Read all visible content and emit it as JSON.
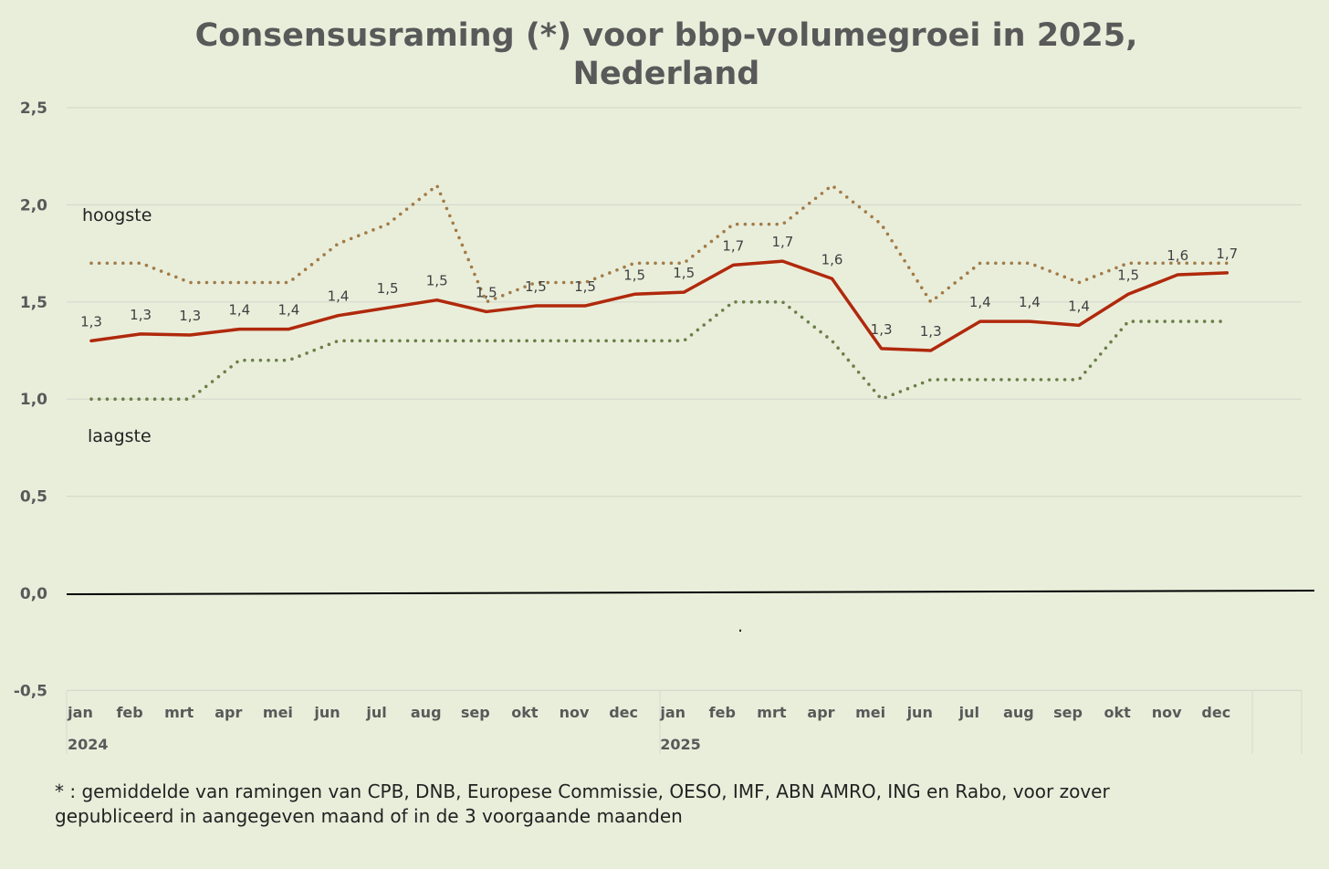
{
  "chart_data": {
    "type": "line",
    "title": "Consensusraming (*) voor bbp-volumegroei in 2025, Nederland",
    "title_lines": [
      "Consensusraming (*) voor bbp-volumegroei in 2025,",
      "Nederland"
    ],
    "xlabel": "",
    "ylabel": "",
    "ylim": [
      -0.5,
      2.5
    ],
    "yticks": [
      -0.5,
      0,
      0.5,
      1,
      1.5,
      2,
      2.5
    ],
    "ytick_labels": [
      "-0,5",
      "0,0",
      "0,5",
      "1,0",
      "1,5",
      "2,0",
      "2,5"
    ],
    "grid": true,
    "categories": [
      "jan",
      "feb",
      "mrt",
      "apr",
      "mei",
      "jun",
      "jul",
      "aug",
      "sep",
      "okt",
      "nov",
      "dec",
      "jan",
      "feb",
      "mrt",
      "apr",
      "mei",
      "jun",
      "jul",
      "aug",
      "sep",
      "okt",
      "nov",
      "dec"
    ],
    "year_groups": [
      {
        "label": "2024",
        "start": 0
      },
      {
        "label": "2025",
        "start": 12
      }
    ],
    "series": [
      {
        "name": "consensus",
        "color": "#b0290c",
        "style": "solid",
        "values": [
          1.3,
          1.335,
          1.33,
          1.36,
          1.36,
          1.43,
          1.47,
          1.51,
          1.45,
          1.48,
          1.48,
          1.54,
          1.55,
          1.69,
          1.71,
          1.62,
          1.26,
          1.25,
          1.4,
          1.4,
          1.38,
          1.54,
          1.64,
          1.65
        ],
        "data_labels": [
          "1,3",
          "1,3",
          "1,3",
          "1,4",
          "1,4",
          "1,4",
          "1,5",
          "1,5",
          "1,5",
          "1,5",
          "1,5",
          "1,5",
          "1,5",
          "1,7",
          "1,7",
          "1,6",
          "1,3",
          "1,3",
          "1,4",
          "1,4",
          "1,4",
          "1,5",
          "1,6",
          "1,7"
        ]
      },
      {
        "name": "hoogste",
        "color": "#a27b46",
        "style": "dotted",
        "values": [
          1.7,
          1.7,
          1.6,
          1.6,
          1.6,
          1.8,
          1.9,
          2.1,
          1.5,
          1.6,
          1.6,
          1.7,
          1.7,
          1.9,
          1.9,
          2.1,
          1.9,
          1.5,
          1.7,
          1.7,
          1.6,
          1.7,
          1.7,
          1.7
        ]
      },
      {
        "name": "laagste",
        "color": "#6b7f47",
        "style": "dotted",
        "values": [
          1.0,
          1.0,
          1.0,
          1.2,
          1.2,
          1.3,
          1.3,
          1.3,
          1.3,
          1.3,
          1.3,
          1.3,
          1.3,
          1.5,
          1.5,
          1.3,
          1.0,
          1.1,
          1.1,
          1.1,
          1.1,
          1.4,
          1.4,
          1.4
        ]
      }
    ],
    "annotations": [
      "hoogste",
      "laagste",
      "."
    ]
  },
  "footnote": [
    "* : gemiddelde van ramingen van CPB, DNB, Europese Commissie, OESO, IMF, ABN AMRO, ING en Rabo, voor zover",
    "gepubliceerd in aangegeven maand of in de 3 voorgaande maanden"
  ]
}
